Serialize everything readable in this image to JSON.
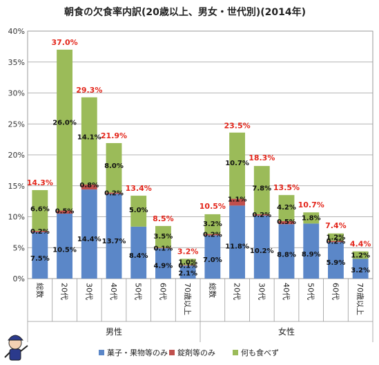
{
  "chart_data": {
    "type": "bar",
    "stacked": true,
    "title": "朝食の欠食率内訳(20歳以上、男女・世代別)(2014年)",
    "ylim": [
      0,
      40
    ],
    "y_ticks": [
      "0%",
      "5%",
      "10%",
      "15%",
      "20%",
      "25%",
      "30%",
      "35%",
      "40%"
    ],
    "grid": true,
    "legend_position": "bottom",
    "colors": {
      "series": [
        "#5b87c8",
        "#c0504d",
        "#9bbb59"
      ],
      "total_label": "#e3261b"
    },
    "groups": [
      {
        "name": "男性",
        "categories": [
          "総数",
          "20代",
          "30代",
          "40代",
          "50代",
          "60代",
          "70歳以上"
        ]
      },
      {
        "name": "女性",
        "categories": [
          "総数",
          "20代",
          "30代",
          "40代",
          "50代",
          "60代",
          "70歳以上"
        ]
      }
    ],
    "series": [
      {
        "name": "菓子・果物等のみ",
        "values": [
          7.5,
          10.5,
          14.4,
          13.7,
          8.4,
          4.9,
          2.1,
          7.0,
          11.8,
          10.2,
          8.8,
          8.9,
          5.9,
          3.2
        ],
        "labels": [
          "7.5%",
          "10.5%",
          "14.4%",
          "13.7%",
          "8.4%",
          "4.9%",
          "2.1%",
          "7.0%",
          "11.8%",
          "10.2%",
          "8.8%",
          "8.9%",
          "5.9%",
          "3.2%"
        ]
      },
      {
        "name": "錠剤等のみ",
        "values": [
          0.2,
          0.5,
          0.8,
          0.2,
          0.0,
          0.1,
          0.1,
          0.2,
          1.1,
          0.2,
          0.5,
          0.0,
          0.2,
          0.0
        ],
        "labels": [
          "0.2%",
          "0.5%",
          "0.8%",
          "0.2%",
          "",
          "0.1%",
          "0.1%",
          "0.2%",
          "1.1%",
          "0.2%",
          "0.5%",
          "",
          "0.2%",
          ""
        ]
      },
      {
        "name": "何も食べず",
        "values": [
          6.6,
          26.0,
          14.1,
          8.0,
          5.0,
          3.5,
          1.0,
          3.2,
          10.7,
          7.8,
          4.2,
          1.8,
          1.2,
          1.2
        ],
        "labels": [
          "6.6%",
          "26.0%",
          "14.1%",
          "8.0%",
          "5.0%",
          "3.5%",
          "1.0%",
          "3.2%",
          "10.7%",
          "7.8%",
          "4.2%",
          "1.8%",
          "1.2%",
          "1.2%"
        ]
      }
    ],
    "totals": [
      14.3,
      37.0,
      29.3,
      21.9,
      13.4,
      8.5,
      3.2,
      10.5,
      23.5,
      18.3,
      13.5,
      10.7,
      7.4,
      4.4
    ],
    "total_labels": [
      "14.3%",
      "37.0%",
      "29.3%",
      "21.9%",
      "13.4%",
      "8.5%",
      "3.2%",
      "10.5%",
      "23.5%",
      "18.3%",
      "13.5%",
      "10.7%",
      "7.4%",
      "4.4%"
    ]
  }
}
